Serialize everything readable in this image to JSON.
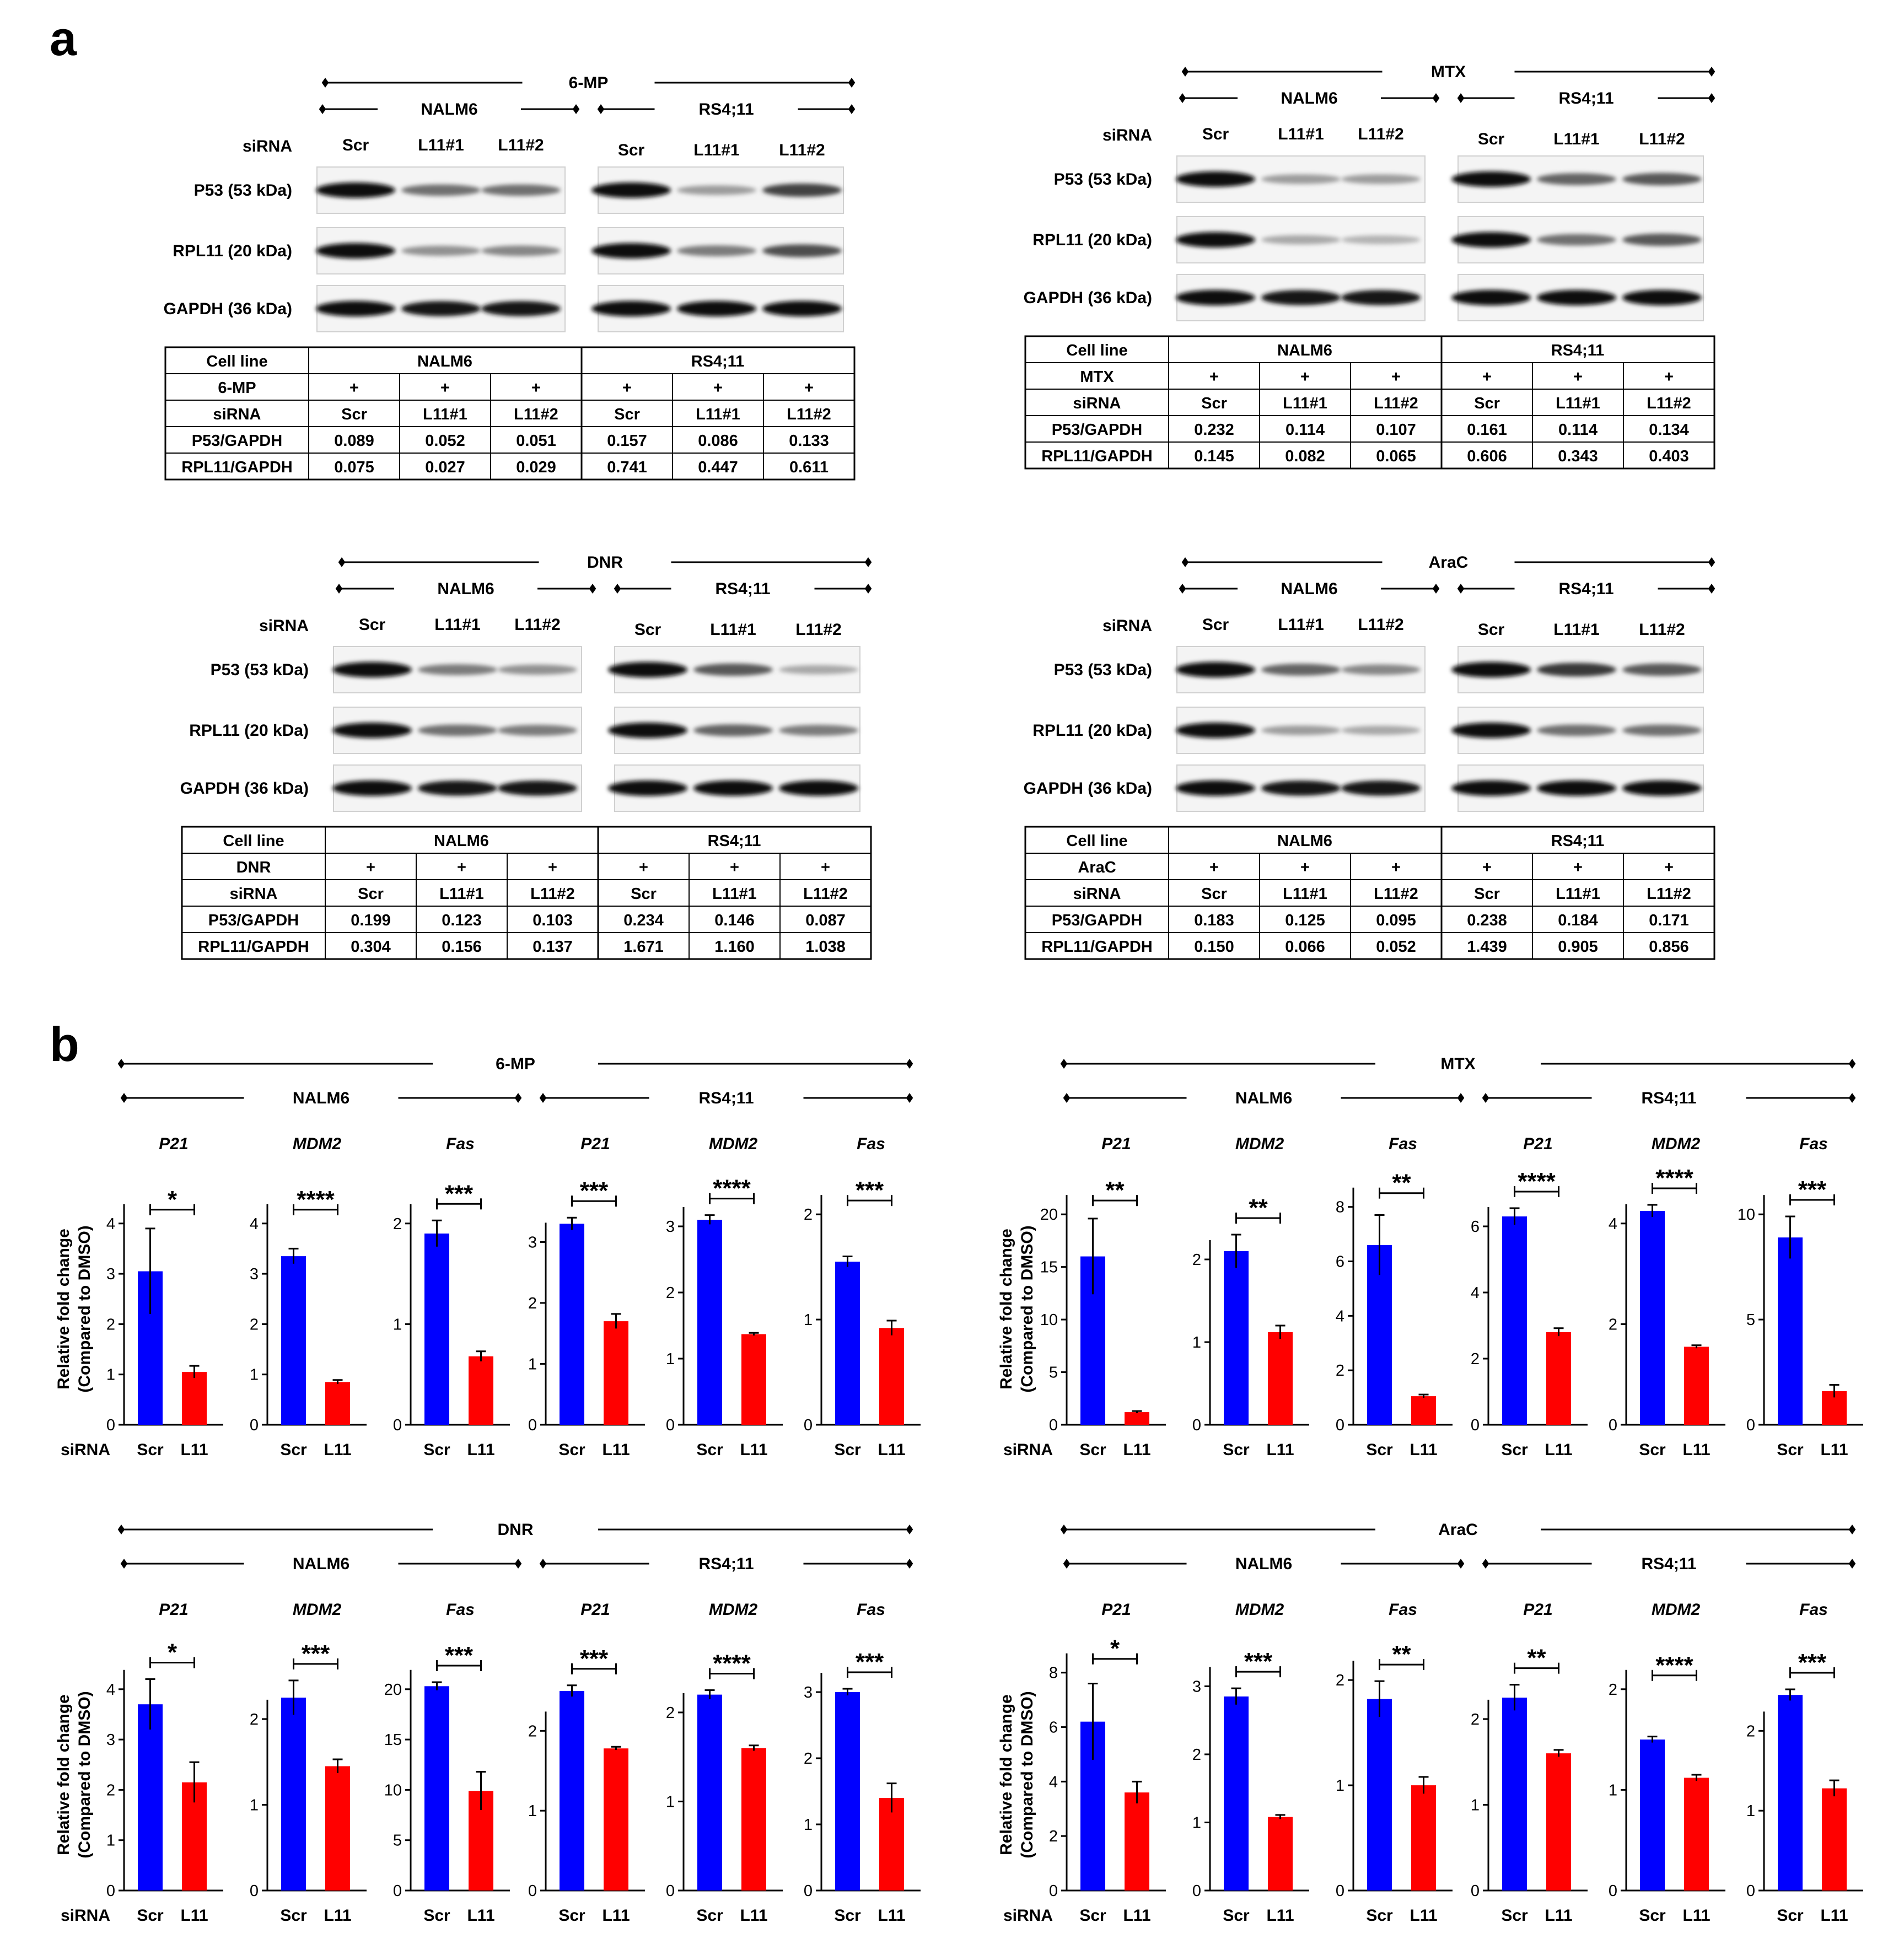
{
  "panel_labels": {
    "a": "a",
    "b": "b"
  },
  "western": [
    {
      "drug": "6-MP",
      "cell_lines": [
        "NALM6",
        "RS4;11"
      ],
      "siRNA_label": "siRNA",
      "siRNA": [
        "Scr",
        "L11#1",
        "L11#2"
      ],
      "blots": [
        "P53 (53 kDa)",
        "RPL11 (20 kDa)",
        "GAPDH (36 kDa)"
      ],
      "intensity": [
        [
          1.0,
          0.55,
          0.55,
          1.0,
          0.35,
          0.75
        ],
        [
          1.0,
          0.4,
          0.45,
          1.0,
          0.5,
          0.7
        ],
        [
          1.0,
          0.95,
          0.95,
          1.0,
          1.0,
          1.0
        ]
      ],
      "table": {
        "headers": [
          "Cell line",
          "6-MP",
          "siRNA",
          "P53/GAPDH",
          "RPL11/GAPDH"
        ],
        "group_names": [
          "NALM6",
          "RS4;11"
        ],
        "treatment": [
          "+",
          "+",
          "+",
          "+",
          "+",
          "+"
        ],
        "siRNA": [
          "Scr",
          "L11#1",
          "L11#2",
          "Scr",
          "L11#1",
          "L11#2"
        ],
        "p53": [
          "0.089",
          "0.052",
          "0.051",
          "0.157",
          "0.086",
          "0.133"
        ],
        "rpl11": [
          "0.075",
          "0.027",
          "0.029",
          "0.741",
          "0.447",
          "0.611"
        ]
      }
    },
    {
      "drug": "MTX",
      "cell_lines": [
        "NALM6",
        "RS4;11"
      ],
      "siRNA_label": "siRNA",
      "siRNA": [
        "Scr",
        "L11#1",
        "L11#2"
      ],
      "blots": [
        "P53 (53 kDa)",
        "RPL11 (20 kDa)",
        "GAPDH (36 kDa)"
      ],
      "intensity": [
        [
          1.0,
          0.35,
          0.35,
          1.0,
          0.6,
          0.65
        ],
        [
          1.0,
          0.3,
          0.25,
          1.0,
          0.55,
          0.65
        ],
        [
          1.0,
          0.95,
          0.95,
          1.0,
          1.0,
          1.0
        ]
      ],
      "table": {
        "headers": [
          "Cell line",
          "MTX",
          "siRNA",
          "P53/GAPDH",
          "RPL11/GAPDH"
        ],
        "group_names": [
          "NALM6",
          "RS4;11"
        ],
        "treatment": [
          "+",
          "+",
          "+",
          "+",
          "+",
          "+"
        ],
        "siRNA": [
          "Scr",
          "L11#1",
          "L11#2",
          "Scr",
          "L11#1",
          "L11#2"
        ],
        "p53": [
          "0.232",
          "0.114",
          "0.107",
          "0.161",
          "0.114",
          "0.134"
        ],
        "rpl11": [
          "0.145",
          "0.082",
          "0.065",
          "0.606",
          "0.343",
          "0.403"
        ]
      }
    },
    {
      "drug": "DNR",
      "cell_lines": [
        "NALM6",
        "RS4;11"
      ],
      "siRNA_label": "siRNA",
      "siRNA": [
        "Scr",
        "L11#1",
        "L11#2"
      ],
      "blots": [
        "P53 (53 kDa)",
        "RPL11 (20 kDa)",
        "GAPDH (36 kDa)"
      ],
      "intensity": [
        [
          1.0,
          0.5,
          0.4,
          1.0,
          0.65,
          0.3
        ],
        [
          1.0,
          0.55,
          0.5,
          1.0,
          0.6,
          0.5
        ],
        [
          1.0,
          0.95,
          0.95,
          1.0,
          1.0,
          1.0
        ]
      ],
      "table": {
        "headers": [
          "Cell line",
          "DNR",
          "siRNA",
          "P53/GAPDH",
          "RPL11/GAPDH"
        ],
        "group_names": [
          "NALM6",
          "RS4;11"
        ],
        "treatment": [
          "+",
          "+",
          "+",
          "+",
          "+",
          "+"
        ],
        "siRNA": [
          "Scr",
          "L11#1",
          "L11#2",
          "Scr",
          "L11#1",
          "L11#2"
        ],
        "p53": [
          "0.199",
          "0.123",
          "0.103",
          "0.234",
          "0.146",
          "0.087"
        ],
        "rpl11": [
          "0.304",
          "0.156",
          "0.137",
          "1.671",
          "1.160",
          "1.038"
        ]
      }
    },
    {
      "drug": "AraC",
      "cell_lines": [
        "NALM6",
        "RS4;11"
      ],
      "siRNA_label": "siRNA",
      "siRNA": [
        "Scr",
        "L11#1",
        "L11#2"
      ],
      "blots": [
        "P53 (53 kDa)",
        "RPL11 (20 kDa)",
        "GAPDH (36 kDa)"
      ],
      "intensity": [
        [
          1.0,
          0.6,
          0.45,
          1.0,
          0.8,
          0.65
        ],
        [
          1.0,
          0.35,
          0.3,
          1.0,
          0.55,
          0.55
        ],
        [
          1.0,
          0.95,
          0.95,
          1.0,
          1.0,
          1.0
        ]
      ],
      "table": {
        "headers": [
          "Cell line",
          "AraC",
          "siRNA",
          "P53/GAPDH",
          "RPL11/GAPDH"
        ],
        "group_names": [
          "NALM6",
          "RS4;11"
        ],
        "treatment": [
          "+",
          "+",
          "+",
          "+",
          "+",
          "+"
        ],
        "siRNA": [
          "Scr",
          "L11#1",
          "L11#2",
          "Scr",
          "L11#1",
          "L11#2"
        ],
        "p53": [
          "0.183",
          "0.125",
          "0.095",
          "0.238",
          "0.184",
          "0.171"
        ],
        "rpl11": [
          "0.150",
          "0.066",
          "0.052",
          "1.439",
          "0.905",
          "0.856"
        ]
      }
    }
  ],
  "bar_groups": [
    {
      "drug": "6-MP",
      "cell_lines": [
        "NALM6",
        "RS4;11"
      ]
    },
    {
      "drug": "MTX",
      "cell_lines": [
        "NALM6",
        "RS4;11"
      ]
    },
    {
      "drug": "DNR",
      "cell_lines": [
        "NALM6",
        "RS4;11"
      ]
    },
    {
      "drug": "AraC",
      "cell_lines": [
        "NALM6",
        "RS4;11"
      ]
    }
  ],
  "ylabel_lines": [
    "Relative fold change",
    "(Compared to DMSO)"
  ],
  "siRNA_row_label": "siRNA",
  "colors": {
    "scr": "#0000ff",
    "l11": "#ff0000",
    "axis": "#000000"
  },
  "chart_data": [
    {
      "type": "bar",
      "drug": "6-MP",
      "cell_line": "NALM6",
      "gene": "P21",
      "categories": [
        "Scr",
        "L11"
      ],
      "values": [
        3.05,
        1.05
      ],
      "errors": [
        0.85,
        0.12
      ],
      "yticks": [
        0,
        1,
        2,
        3,
        4
      ],
      "ymax": 4.6,
      "sig": "*"
    },
    {
      "type": "bar",
      "drug": "6-MP",
      "cell_line": "NALM6",
      "gene": "MDM2",
      "categories": [
        "Scr",
        "L11"
      ],
      "values": [
        3.35,
        0.85
      ],
      "errors": [
        0.15,
        0.04
      ],
      "yticks": [
        0,
        1,
        2,
        3,
        4
      ],
      "ymax": 4.6,
      "sig": "****"
    },
    {
      "type": "bar",
      "drug": "6-MP",
      "cell_line": "NALM6",
      "gene": "Fas",
      "categories": [
        "Scr",
        "L11"
      ],
      "values": [
        1.9,
        0.68
      ],
      "errors": [
        0.13,
        0.05
      ],
      "yticks": [
        0,
        1,
        2
      ],
      "ymax": 2.3,
      "sig": "***"
    },
    {
      "type": "bar",
      "drug": "6-MP",
      "cell_line": "RS4;11",
      "gene": "P21",
      "categories": [
        "Scr",
        "L11"
      ],
      "values": [
        3.3,
        1.7
      ],
      "errors": [
        0.1,
        0.12
      ],
      "yticks": [
        0,
        1,
        2,
        3
      ],
      "ymax": 3.8,
      "sig": "***"
    },
    {
      "type": "bar",
      "drug": "6-MP",
      "cell_line": "RS4;11",
      "gene": "MDM2",
      "categories": [
        "Scr",
        "L11"
      ],
      "values": [
        3.1,
        1.37
      ],
      "errors": [
        0.07,
        0.02
      ],
      "yticks": [
        0,
        1,
        2,
        3
      ],
      "ymax": 3.5,
      "sig": "****"
    },
    {
      "type": "bar",
      "drug": "6-MP",
      "cell_line": "RS4;11",
      "gene": "Fas",
      "categories": [
        "Scr",
        "L11"
      ],
      "values": [
        1.55,
        0.92
      ],
      "errors": [
        0.05,
        0.07
      ],
      "yticks": [
        0,
        1,
        2
      ],
      "ymax": 2.2,
      "sig": "***"
    },
    {
      "type": "bar",
      "drug": "MTX",
      "cell_line": "NALM6",
      "gene": "P21",
      "categories": [
        "Scr",
        "L11"
      ],
      "values": [
        16.0,
        1.2
      ],
      "errors": [
        3.6,
        0.1
      ],
      "yticks": [
        0,
        5,
        10,
        15,
        20
      ],
      "ymax": 22,
      "sig": "**"
    },
    {
      "type": "bar",
      "drug": "MTX",
      "cell_line": "NALM6",
      "gene": "MDM2",
      "categories": [
        "Scr",
        "L11"
      ],
      "values": [
        2.1,
        1.12
      ],
      "errors": [
        0.2,
        0.08
      ],
      "yticks": [
        0,
        1,
        2
      ],
      "ymax": 2.8,
      "sig": "**"
    },
    {
      "type": "bar",
      "drug": "MTX",
      "cell_line": "NALM6",
      "gene": "Fas",
      "categories": [
        "Scr",
        "L11"
      ],
      "values": [
        6.6,
        1.05
      ],
      "errors": [
        1.1,
        0.06
      ],
      "yticks": [
        0,
        2,
        4,
        6,
        8
      ],
      "ymax": 8.5,
      "sig": "**"
    },
    {
      "type": "bar",
      "drug": "MTX",
      "cell_line": "RS4;11",
      "gene": "P21",
      "categories": [
        "Scr",
        "L11"
      ],
      "values": [
        6.3,
        2.8
      ],
      "errors": [
        0.25,
        0.12
      ],
      "yticks": [
        0,
        2,
        4,
        6
      ],
      "ymax": 7.0,
      "sig": "****"
    },
    {
      "type": "bar",
      "drug": "MTX",
      "cell_line": "RS4;11",
      "gene": "MDM2",
      "categories": [
        "Scr",
        "L11"
      ],
      "values": [
        4.25,
        1.55
      ],
      "errors": [
        0.12,
        0.03
      ],
      "yticks": [
        0,
        2,
        4
      ],
      "ymax": 4.6,
      "sig": "****"
    },
    {
      "type": "bar",
      "drug": "MTX",
      "cell_line": "RS4;11",
      "gene": "Fas",
      "categories": [
        "Scr",
        "L11"
      ],
      "values": [
        8.9,
        1.6
      ],
      "errors": [
        1.0,
        0.3
      ],
      "yticks": [
        0,
        5,
        10
      ],
      "ymax": 11.0,
      "sig": "***"
    },
    {
      "type": "bar",
      "drug": "DNR",
      "cell_line": "NALM6",
      "gene": "P21",
      "categories": [
        "Scr",
        "L11"
      ],
      "values": [
        3.7,
        2.15
      ],
      "errors": [
        0.5,
        0.4
      ],
      "yticks": [
        0,
        1,
        2,
        3,
        4
      ],
      "ymax": 4.6,
      "sig": "*"
    },
    {
      "type": "bar",
      "drug": "DNR",
      "cell_line": "NALM6",
      "gene": "MDM2",
      "categories": [
        "Scr",
        "L11"
      ],
      "values": [
        2.25,
        1.45
      ],
      "errors": [
        0.2,
        0.08
      ],
      "yticks": [
        0,
        1,
        2
      ],
      "ymax": 2.7,
      "sig": "***"
    },
    {
      "type": "bar",
      "drug": "DNR",
      "cell_line": "NALM6",
      "gene": "Fas",
      "categories": [
        "Scr",
        "L11"
      ],
      "values": [
        20.3,
        9.9
      ],
      "errors": [
        0.4,
        1.9
      ],
      "yticks": [
        0,
        5,
        10,
        15,
        20
      ],
      "ymax": 23,
      "sig": "***"
    },
    {
      "type": "bar",
      "drug": "DNR",
      "cell_line": "RS4;11",
      "gene": "P21",
      "categories": [
        "Scr",
        "L11"
      ],
      "values": [
        2.5,
        1.78
      ],
      "errors": [
        0.07,
        0.02
      ],
      "yticks": [
        0,
        1,
        2
      ],
      "ymax": 2.9,
      "sig": "***"
    },
    {
      "type": "bar",
      "drug": "DNR",
      "cell_line": "RS4;11",
      "gene": "MDM2",
      "categories": [
        "Scr",
        "L11"
      ],
      "values": [
        2.2,
        1.6
      ],
      "errors": [
        0.05,
        0.03
      ],
      "yticks": [
        0,
        1,
        2
      ],
      "ymax": 2.6,
      "sig": "****"
    },
    {
      "type": "bar",
      "drug": "DNR",
      "cell_line": "RS4;11",
      "gene": "Fas",
      "categories": [
        "Scr",
        "L11"
      ],
      "values": [
        3.0,
        1.4
      ],
      "errors": [
        0.05,
        0.22
      ],
      "yticks": [
        0,
        1,
        2,
        3
      ],
      "ymax": 3.5,
      "sig": "***"
    },
    {
      "type": "bar",
      "drug": "AraC",
      "cell_line": "NALM6",
      "gene": "P21",
      "categories": [
        "Scr",
        "L11"
      ],
      "values": [
        6.2,
        3.6
      ],
      "errors": [
        1.4,
        0.4
      ],
      "yticks": [
        0,
        2,
        4,
        6,
        8
      ],
      "ymax": 8.5,
      "sig": "*"
    },
    {
      "type": "bar",
      "drug": "AraC",
      "cell_line": "NALM6",
      "gene": "MDM2",
      "categories": [
        "Scr",
        "L11"
      ],
      "values": [
        2.85,
        1.08
      ],
      "errors": [
        0.12,
        0.03
      ],
      "yticks": [
        0,
        1,
        2,
        3
      ],
      "ymax": 3.4,
      "sig": "***"
    },
    {
      "type": "bar",
      "drug": "AraC",
      "cell_line": "NALM6",
      "gene": "Fas",
      "categories": [
        "Scr",
        "L11"
      ],
      "values": [
        1.82,
        1.0
      ],
      "errors": [
        0.17,
        0.08
      ],
      "yticks": [
        0,
        1,
        2
      ],
      "ymax": 2.2,
      "sig": "**"
    },
    {
      "type": "bar",
      "drug": "AraC",
      "cell_line": "RS4;11",
      "gene": "P21",
      "categories": [
        "Scr",
        "L11"
      ],
      "values": [
        2.25,
        1.6
      ],
      "errors": [
        0.15,
        0.04
      ],
      "yticks": [
        0,
        1,
        2
      ],
      "ymax": 2.7,
      "sig": "**"
    },
    {
      "type": "bar",
      "drug": "AraC",
      "cell_line": "RS4;11",
      "gene": "MDM2",
      "categories": [
        "Scr",
        "L11"
      ],
      "values": [
        1.5,
        1.12
      ],
      "errors": [
        0.03,
        0.03
      ],
      "yticks": [
        0,
        1,
        2
      ],
      "ymax": 2.3,
      "sig": "****"
    },
    {
      "type": "bar",
      "drug": "AraC",
      "cell_line": "RS4;11",
      "gene": "Fas",
      "categories": [
        "Scr",
        "L11"
      ],
      "values": [
        2.45,
        1.28
      ],
      "errors": [
        0.07,
        0.1
      ],
      "yticks": [
        0,
        1,
        2
      ],
      "ymax": 2.9,
      "sig": "***"
    }
  ]
}
